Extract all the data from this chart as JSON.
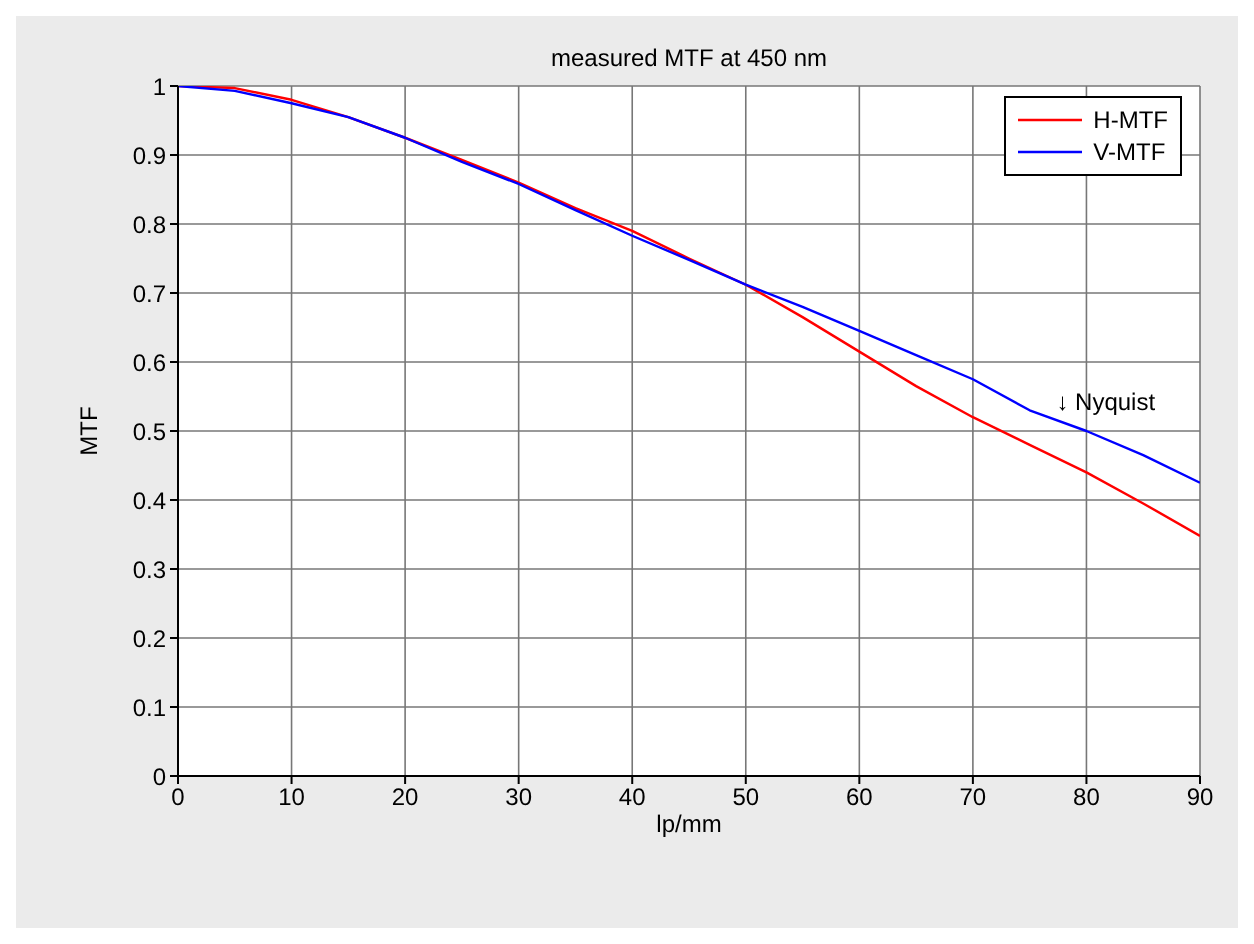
{
  "chart_data": {
    "type": "line",
    "title": "measured MTF at 450 nm",
    "xlabel": "lp/mm",
    "ylabel": "MTF",
    "x": [
      0,
      5,
      10,
      15,
      20,
      25,
      30,
      35,
      40,
      45,
      50,
      55,
      60,
      65,
      70,
      75,
      80,
      85,
      90
    ],
    "series": [
      {
        "name": "H-MTF",
        "color": "#ff0000",
        "values": [
          1.0,
          0.997,
          0.98,
          0.955,
          0.925,
          0.893,
          0.86,
          0.823,
          0.79,
          0.75,
          0.712,
          0.665,
          0.615,
          0.565,
          0.52,
          0.48,
          0.44,
          0.395,
          0.348
        ]
      },
      {
        "name": "V-MTF",
        "color": "#0000ff",
        "values": [
          1.0,
          0.993,
          0.975,
          0.955,
          0.925,
          0.89,
          0.858,
          0.82,
          0.783,
          0.748,
          0.712,
          0.68,
          0.645,
          0.61,
          0.575,
          0.53,
          0.5,
          0.465,
          0.425
        ]
      }
    ],
    "xlim": [
      0,
      90
    ],
    "xticks": [
      0,
      10,
      20,
      30,
      40,
      50,
      60,
      70,
      80,
      90
    ],
    "ylim": [
      0,
      1
    ],
    "yticks": [
      0,
      0.1,
      0.2,
      0.3,
      0.4,
      0.5,
      0.6,
      0.7,
      0.8,
      0.9,
      1
    ],
    "annotations": [
      {
        "text": "↓ Nyquist",
        "x": 77,
        "y": 0.52
      }
    ],
    "grid": true,
    "legend": "top right",
    "marker": "none",
    "line_style": "solid"
  }
}
